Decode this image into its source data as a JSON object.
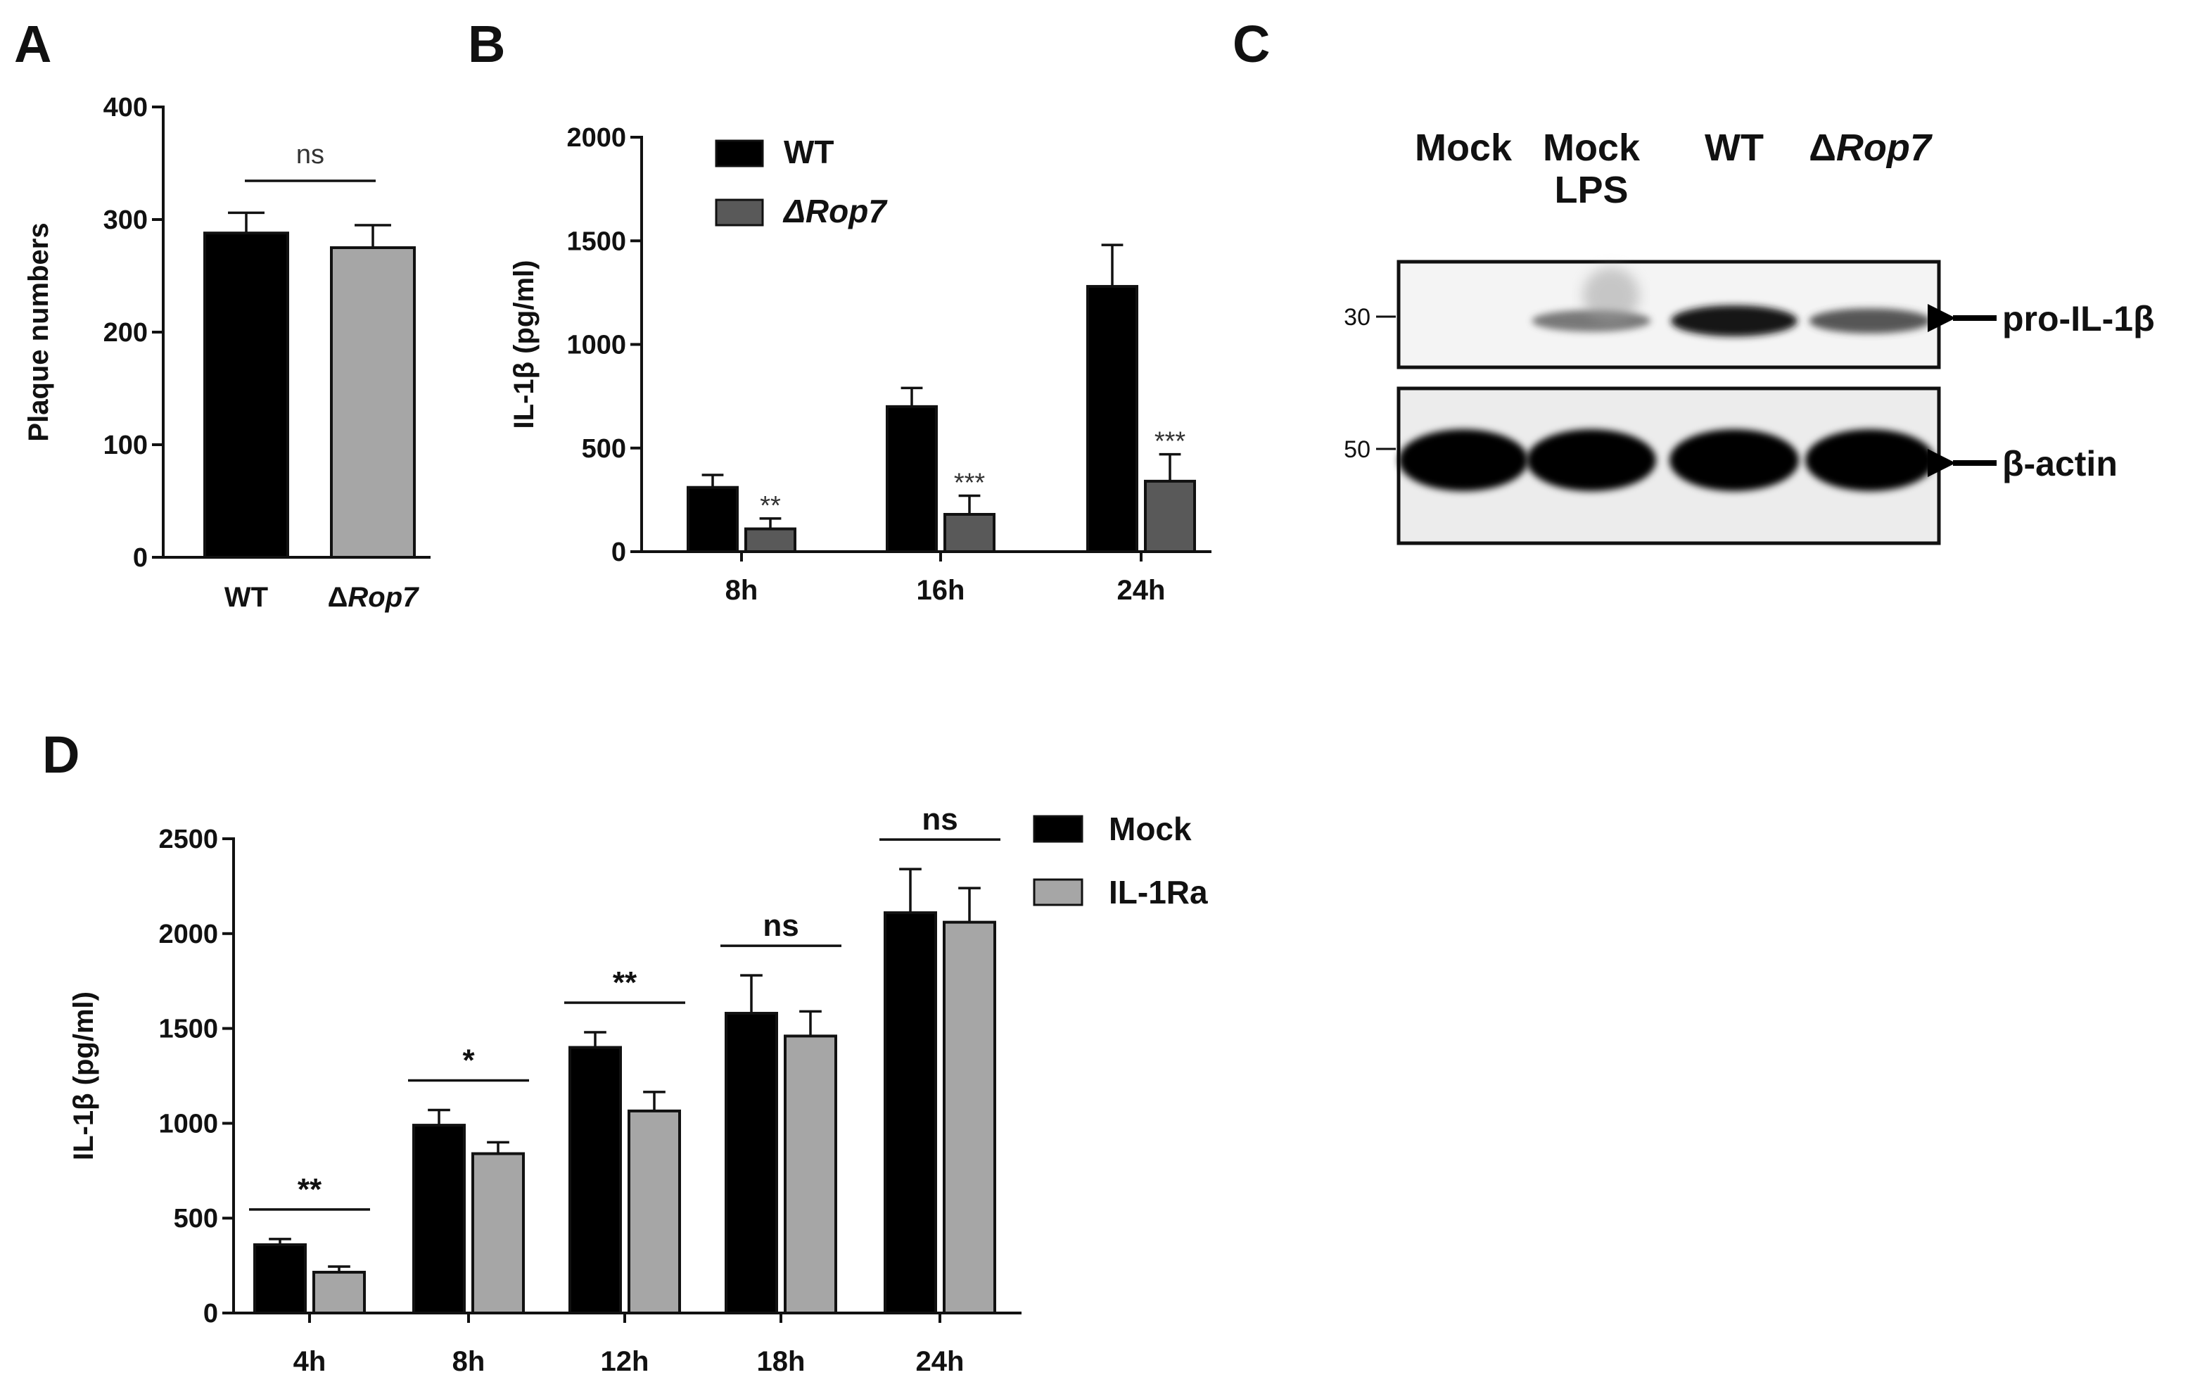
{
  "panel_labels": [
    "A",
    "B",
    "C",
    "D"
  ],
  "chart_data": [
    {
      "panel": "A",
      "type": "bar",
      "ylabel": "Plaque numbers",
      "ylim": [
        0,
        400
      ],
      "yticks": [
        "0",
        "100",
        "200",
        "300",
        "400"
      ],
      "categories": [
        "WT",
        "ΔRop7"
      ],
      "values": [
        288,
        275
      ],
      "errors": [
        18,
        20
      ],
      "colors": [
        "#000000",
        "#a6a6a6"
      ],
      "significance": [
        {
          "text": "ns",
          "between": [
            0,
            1
          ]
        }
      ]
    },
    {
      "panel": "B",
      "type": "bar",
      "ylabel": "IL-1β (pg/ml)",
      "ylim": [
        0,
        2000
      ],
      "yticks": [
        "0",
        "500",
        "1000",
        "1500",
        "2000"
      ],
      "categories": [
        "8h",
        "16h",
        "24h"
      ],
      "legend_position": "top-left",
      "series": [
        {
          "name": "WT",
          "color": "#000000",
          "values": [
            310,
            700,
            1280
          ],
          "errors": [
            60,
            90,
            200
          ]
        },
        {
          "name": "ΔRop7",
          "color": "#595959",
          "values": [
            110,
            180,
            340
          ],
          "errors": [
            50,
            90,
            130
          ]
        }
      ],
      "annotations": [
        {
          "category": 0,
          "series": 1,
          "text": "**"
        },
        {
          "category": 1,
          "series": 1,
          "text": "***"
        },
        {
          "category": 2,
          "series": 1,
          "text": "***"
        }
      ]
    },
    {
      "panel": "D",
      "type": "bar",
      "ylabel": "IL-1β (pg/ml)",
      "ylim": [
        0,
        2500
      ],
      "yticks": [
        "0",
        "500",
        "1000",
        "1500",
        "2000",
        "2500"
      ],
      "categories": [
        "4h",
        "8h",
        "12h",
        "18h",
        "24h"
      ],
      "legend_position": "top-right",
      "series": [
        {
          "name": "Mock",
          "color": "#000000",
          "values": [
            360,
            990,
            1400,
            1580,
            2110
          ],
          "errors": [
            30,
            80,
            80,
            200,
            230
          ]
        },
        {
          "name": "IL-1Ra",
          "color": "#a6a6a6",
          "values": [
            215,
            840,
            1065,
            1460,
            2060
          ],
          "errors": [
            30,
            60,
            100,
            130,
            180
          ]
        }
      ],
      "significance": [
        {
          "category": 0,
          "text": "**"
        },
        {
          "category": 1,
          "text": "*"
        },
        {
          "category": 2,
          "text": "**"
        },
        {
          "category": 3,
          "text": "ns"
        },
        {
          "category": 4,
          "text": "ns"
        }
      ]
    }
  ],
  "blot": {
    "lanes": [
      "Mock",
      "Mock\nLPS",
      "WT",
      "ΔRop7"
    ],
    "markers": [
      "30",
      "50"
    ],
    "bands": [
      "pro-IL-1β",
      "β-actin"
    ],
    "pro_il1b_intensity": [
      0.0,
      0.45,
      1.0,
      0.65
    ],
    "actin_intensity": [
      1.0,
      1.0,
      1.0,
      1.0
    ]
  }
}
